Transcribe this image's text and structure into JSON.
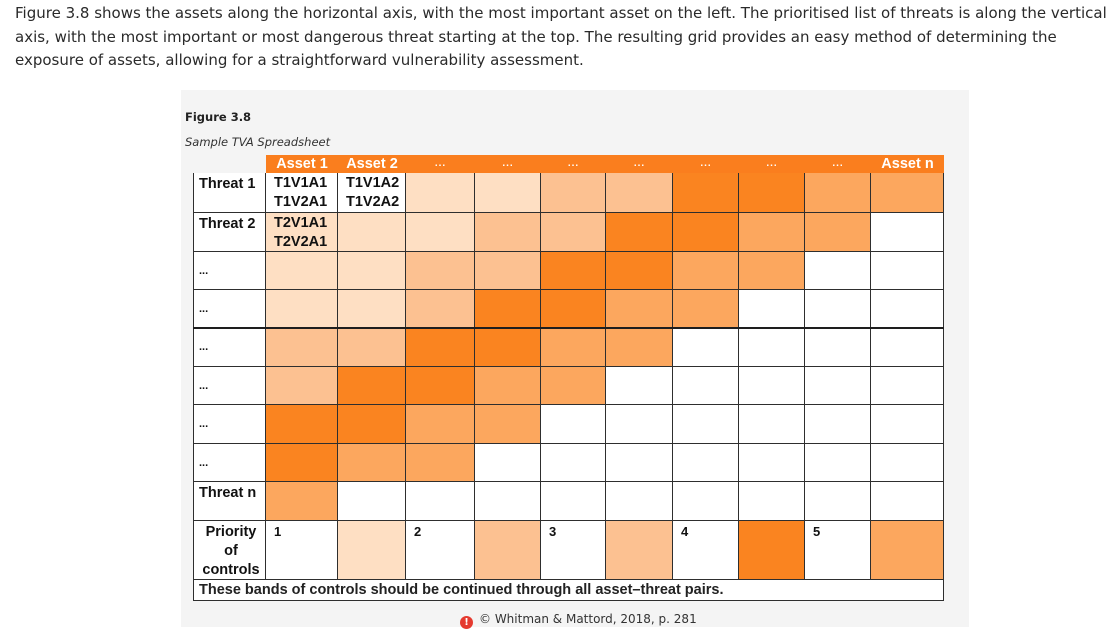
{
  "intro_text": "Figure 3.8 shows the assets along the horizontal axis, with the most important asset on the left. The prioritised list of threats is along the vertical axis, with the most important or most dangerous threat starting at the top. The resulting grid provides an easy method of determining the exposure of assets, allowing for a straightforward vulnerability assessment.",
  "figure": {
    "label": "Figure 3.8",
    "caption": "Sample TVA Spreadsheet",
    "headers": [
      "Asset 1",
      "Asset 2",
      "...",
      "...",
      "...",
      "...",
      "...",
      "...",
      "...",
      "Asset n"
    ],
    "rows": [
      {
        "label": "Threat 1",
        "pairs": [
          "T1V1A1\nT1V2A1",
          "T1V1A2\nT1V2A2"
        ],
        "levels": [
          0,
          0,
          1,
          1,
          2,
          2,
          4,
          4,
          3,
          3
        ]
      },
      {
        "label": "Threat 2",
        "pairs": [
          "T2V1A1\nT2V2A1",
          ""
        ],
        "levels": [
          1,
          1,
          1,
          2,
          2,
          4,
          4,
          3,
          3,
          0
        ]
      },
      {
        "label": "...",
        "pairs": [],
        "levels": [
          1,
          1,
          2,
          2,
          4,
          4,
          3,
          3,
          0,
          0
        ]
      },
      {
        "label": "...",
        "pairs": [],
        "levels": [
          1,
          1,
          2,
          4,
          4,
          3,
          3,
          0,
          0,
          0
        ]
      },
      {
        "label": "...",
        "pairs": [],
        "levels": [
          2,
          2,
          4,
          4,
          3,
          3,
          0,
          0,
          0,
          0
        ]
      },
      {
        "label": "...",
        "pairs": [],
        "levels": [
          2,
          4,
          4,
          3,
          3,
          0,
          0,
          0,
          0,
          0
        ]
      },
      {
        "label": "...",
        "pairs": [],
        "levels": [
          4,
          4,
          3,
          3,
          0,
          0,
          0,
          0,
          0,
          0
        ]
      },
      {
        "label": "...",
        "pairs": [],
        "levels": [
          4,
          3,
          3,
          0,
          0,
          0,
          0,
          0,
          0,
          0
        ]
      },
      {
        "label": "Threat n",
        "pairs": [],
        "levels": [
          3,
          0,
          0,
          0,
          0,
          0,
          0,
          0,
          0,
          0
        ]
      }
    ],
    "priority": {
      "label": "Priority of controls",
      "cells": [
        {
          "text": "1",
          "level": 0
        },
        {
          "text": "",
          "level": 1
        },
        {
          "text": "2",
          "level": 0
        },
        {
          "text": "",
          "level": 2
        },
        {
          "text": "3",
          "level": 0
        },
        {
          "text": "",
          "level": 2
        },
        {
          "text": "4",
          "level": 0
        },
        {
          "text": "",
          "level": 4
        },
        {
          "text": "5",
          "level": 0
        },
        {
          "text": "",
          "level": 3
        }
      ]
    },
    "band_note": "These bands of controls should be continued through all asset–threat pairs.",
    "credit": "© Whitman & Mattord, 2018, p. 281"
  },
  "colors": {
    "header_orange": "#fa7e1e",
    "level_0": "#ffffff",
    "level_1": "#fedfc3",
    "level_2": "#fcc191",
    "level_3": "#fca75e",
    "level_4": "#fa8420",
    "warning": "#e53a2f"
  }
}
